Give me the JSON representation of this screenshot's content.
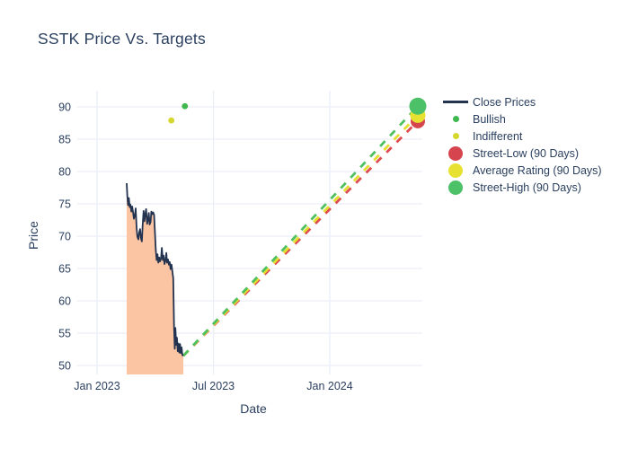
{
  "title": "SSTK Price Vs. Targets",
  "chart_data": {
    "type": "line",
    "title": "SSTK Price Vs. Targets",
    "xlabel": "Date",
    "ylabel": "Price",
    "x_ticks": [
      {
        "label": "Jan 2023",
        "t": 0
      },
      {
        "label": "Jul 2023",
        "t": 6
      },
      {
        "label": "Jan 2024",
        "t": 12
      }
    ],
    "y_ticks": [
      50,
      55,
      60,
      65,
      70,
      75,
      80,
      85,
      90
    ],
    "ylim": [
      48.6,
      92.5
    ],
    "grid": true,
    "legend_position": "right",
    "close_prices": {
      "name": "Close Prices",
      "color": "#243450",
      "fill_color": "#fbc4a2",
      "points_t_months_from_jan2023_vs_price": [
        [
          1.53,
          78.2
        ],
        [
          1.56,
          76.2
        ],
        [
          1.6,
          74.8
        ],
        [
          1.64,
          75.9
        ],
        [
          1.68,
          74.5
        ],
        [
          1.72,
          74.9
        ],
        [
          1.77,
          73.8
        ],
        [
          1.81,
          74.6
        ],
        [
          1.86,
          73.7
        ],
        [
          1.9,
          72.7
        ],
        [
          1.95,
          73.2
        ],
        [
          1.99,
          74.3
        ],
        [
          2.04,
          71.3
        ],
        [
          2.08,
          69.9
        ],
        [
          2.13,
          69.5
        ],
        [
          2.17,
          70.5
        ],
        [
          2.22,
          71.1
        ],
        [
          2.26,
          69.7
        ],
        [
          2.31,
          69.2
        ],
        [
          2.35,
          71.6
        ],
        [
          2.4,
          73.9
        ],
        [
          2.44,
          72.3
        ],
        [
          2.49,
          73.4
        ],
        [
          2.53,
          74.2
        ],
        [
          2.58,
          71.9
        ],
        [
          2.62,
          72.4
        ],
        [
          2.67,
          73.6
        ],
        [
          2.71,
          71.8
        ],
        [
          2.76,
          72.2
        ],
        [
          2.8,
          73.8
        ],
        [
          2.85,
          73.4
        ],
        [
          2.89,
          73.7
        ],
        [
          2.94,
          73.3
        ],
        [
          2.98,
          71.0
        ],
        [
          3.03,
          67.8
        ],
        [
          3.07,
          66.3
        ],
        [
          3.12,
          67.2
        ],
        [
          3.16,
          65.9
        ],
        [
          3.21,
          66.7
        ],
        [
          3.25,
          66.1
        ],
        [
          3.3,
          66.5
        ],
        [
          3.34,
          68.2
        ],
        [
          3.39,
          66.3
        ],
        [
          3.43,
          67.0
        ],
        [
          3.48,
          65.7
        ],
        [
          3.52,
          66.2
        ],
        [
          3.57,
          67.4
        ],
        [
          3.61,
          65.9
        ],
        [
          3.66,
          66.4
        ],
        [
          3.7,
          65.6
        ],
        [
          3.75,
          66.0
        ],
        [
          3.79,
          64.9
        ],
        [
          3.84,
          65.6
        ],
        [
          3.88,
          64.7
        ],
        [
          3.93,
          63.5
        ],
        [
          3.97,
          56.0
        ],
        [
          4.01,
          52.6
        ],
        [
          4.04,
          55.8
        ],
        [
          4.08,
          53.2
        ],
        [
          4.12,
          54.3
        ],
        [
          4.16,
          52.2
        ],
        [
          4.2,
          53.4
        ],
        [
          4.24,
          52.0
        ],
        [
          4.28,
          53.3
        ],
        [
          4.32,
          51.9
        ],
        [
          4.36,
          52.8
        ],
        [
          4.4,
          51.6
        ],
        [
          4.45,
          51.5
        ]
      ]
    },
    "analyst_ratings": [
      {
        "name": "Bullish",
        "t": 4.53,
        "value": 90.1,
        "color": "#3eb84f",
        "r": 3.4
      },
      {
        "name": "Indifferent",
        "t": 3.83,
        "value": 87.9,
        "color": "#d6d72d",
        "r": 3.4
      }
    ],
    "projection_start": {
      "t": 4.45,
      "value": 51.5
    },
    "targets": {
      "t": 16.54,
      "points": [
        {
          "name": "Street-Low (90 Days)",
          "value": 87.8,
          "color": "#d6444e",
          "r": 8
        },
        {
          "name": "Average Rating (90 Days)",
          "value": 88.7,
          "color": "#e7e231",
          "r": 8.5
        },
        {
          "name": "Street-High (90 Days)",
          "value": 90.1,
          "color": "#4dc167",
          "r": 9.5
        }
      ],
      "dash_colors": {
        "low": "#dd4a50",
        "avg": "#e3de2f",
        "high": "#4fc05f"
      }
    }
  },
  "legend": {
    "items": [
      {
        "label": "Close Prices",
        "swatch": "line",
        "color": "#243450",
        "name": "close-prices"
      },
      {
        "label": "Bullish",
        "swatch": "dot",
        "color": "#3eb84f",
        "name": "bullish"
      },
      {
        "label": "Indifferent",
        "swatch": "dot",
        "color": "#d6d72d",
        "name": "indifferent"
      },
      {
        "label": "Street-Low (90 Days)",
        "swatch": "circle",
        "color": "#d6444e",
        "name": "street-low"
      },
      {
        "label": "Average Rating (90 Days)",
        "swatch": "circle",
        "color": "#e7e231",
        "name": "average-rating"
      },
      {
        "label": "Street-High (90 Days)",
        "swatch": "circle",
        "color": "#4dc167",
        "name": "street-high"
      }
    ]
  },
  "colors": {
    "text": "#2a3f5f",
    "gridline": "#e9eef7",
    "background": "#ffffff"
  }
}
